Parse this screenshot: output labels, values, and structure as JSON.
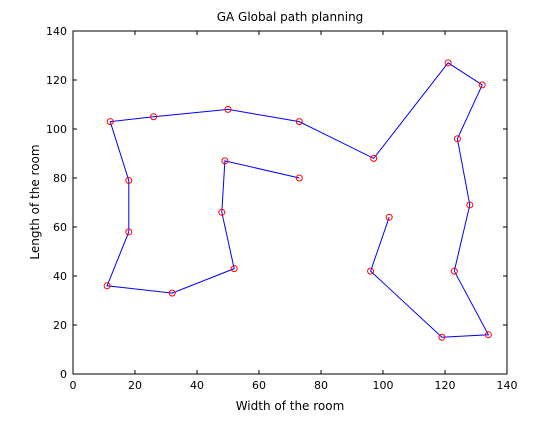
{
  "chart_data": {
    "type": "line",
    "title": "GA Global path planning",
    "xlabel": "Width of the room",
    "ylabel": "Length of the room",
    "xlim": [
      0,
      140
    ],
    "ylim": [
      0,
      140
    ],
    "xticks": [
      0,
      20,
      40,
      60,
      80,
      100,
      120,
      140
    ],
    "yticks": [
      0,
      20,
      40,
      60,
      80,
      100,
      120,
      140
    ],
    "grid": false,
    "series": [
      {
        "line_color": "#0000ff",
        "marker": "circle",
        "marker_color": "#ff0000",
        "points": [
          [
            73,
            80
          ],
          [
            49,
            87
          ],
          [
            48,
            66
          ],
          [
            52,
            43
          ],
          [
            32,
            33
          ],
          [
            11,
            36
          ],
          [
            18,
            58
          ],
          [
            18,
            79
          ],
          [
            12,
            103
          ],
          [
            26,
            105
          ],
          [
            50,
            108
          ],
          [
            73,
            103
          ],
          [
            97,
            88
          ],
          [
            121,
            127
          ],
          [
            132,
            118
          ],
          [
            124,
            96
          ],
          [
            128,
            69
          ],
          [
            123,
            42
          ],
          [
            134,
            16
          ],
          [
            119,
            15
          ],
          [
            96,
            42
          ],
          [
            102,
            64
          ]
        ]
      }
    ]
  }
}
